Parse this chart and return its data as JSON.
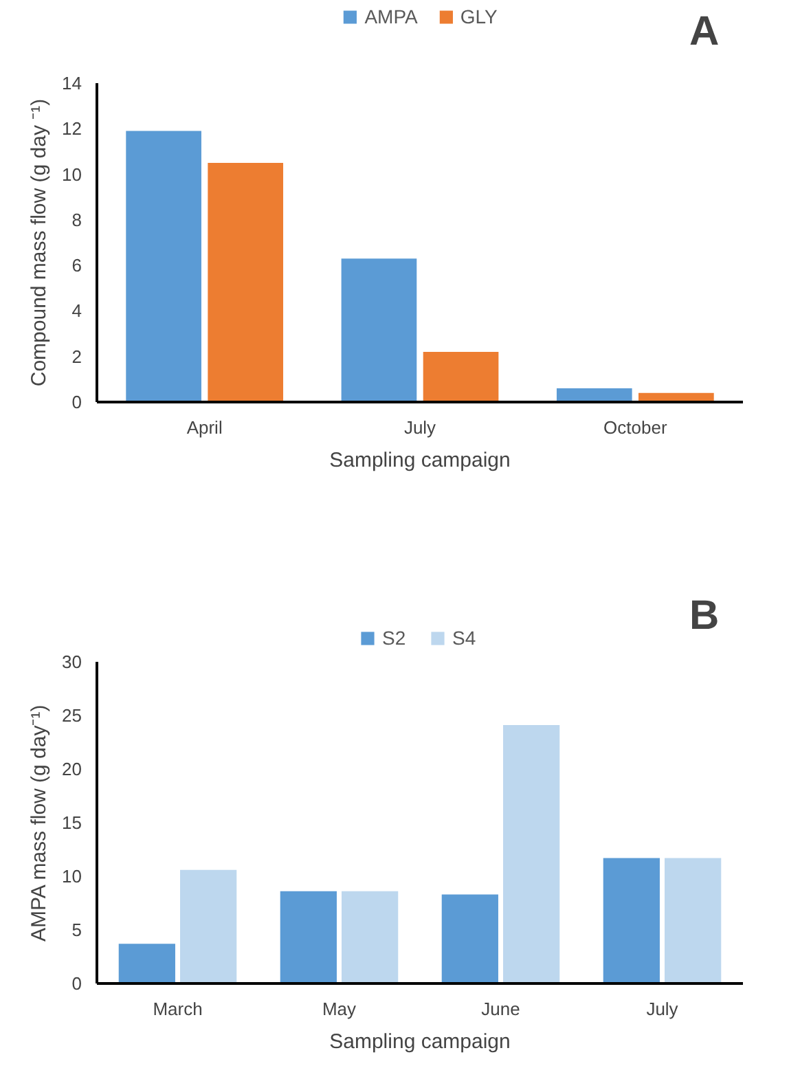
{
  "chart_data": [
    {
      "type": "bar",
      "categories": [
        "April",
        "July",
        "October"
      ],
      "xlabel": "Sampling campaign",
      "ylabel": "Compound mass flow (g day ⁻¹)",
      "ylim": [
        0,
        14
      ],
      "yticks": [
        0,
        2,
        4,
        6,
        8,
        10,
        12,
        14
      ],
      "grid": false,
      "legend": "top",
      "annotations": [
        "A"
      ],
      "series": [
        {
          "name": "AMPA",
          "color": "#5b9bd5",
          "values": [
            11.9,
            6.3,
            0.6
          ]
        },
        {
          "name": "GLY",
          "color": "#ed7d31",
          "values": [
            10.5,
            2.2,
            0.4
          ]
        }
      ]
    },
    {
      "type": "bar",
      "categories": [
        "March",
        "May",
        "June",
        "July"
      ],
      "xlabel": "Sampling campaign",
      "ylabel": "AMPA mass flow (g day⁻¹)",
      "ylim": [
        0,
        30
      ],
      "yticks": [
        0,
        5,
        10,
        15,
        20,
        25,
        30
      ],
      "grid": false,
      "legend": "top",
      "annotations": [
        "B"
      ],
      "series": [
        {
          "name": "S2",
          "color": "#5b9bd5",
          "values": [
            3.7,
            8.6,
            8.3,
            11.7
          ]
        },
        {
          "name": "S4",
          "color": "#bdd7ee",
          "values": [
            10.6,
            8.6,
            24.1,
            11.7
          ]
        }
      ]
    }
  ]
}
